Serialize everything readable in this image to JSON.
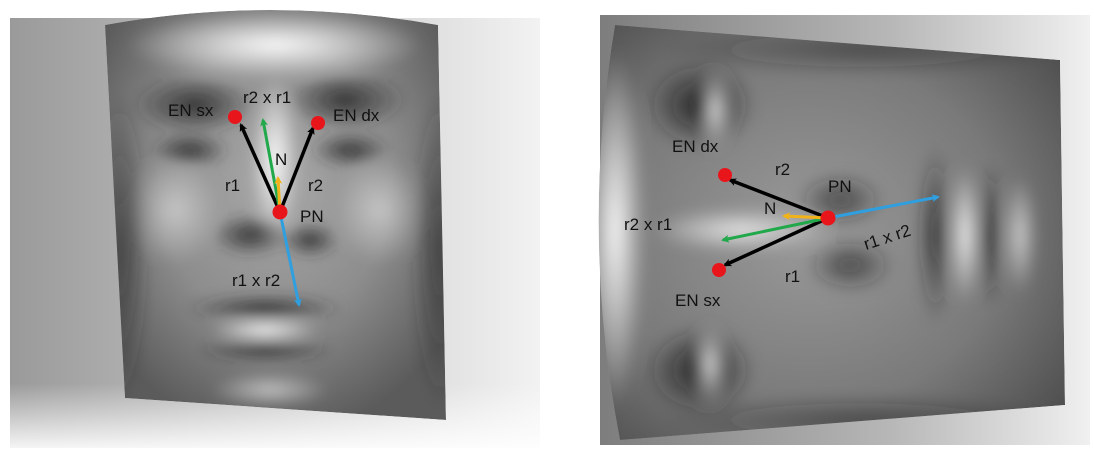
{
  "left_panel": {
    "labels": {
      "en_sx": "EN sx",
      "en_dx": "EN dx",
      "cross_top": "r2 x r1",
      "n": "N",
      "r1": "r1",
      "r2": "r2",
      "pn": "PN",
      "cross_bottom": "r1 x r2"
    }
  },
  "right_panel": {
    "labels": {
      "en_dx": "EN dx",
      "r2": "r2",
      "pn": "PN",
      "n": "N",
      "cross_left": "r2 x r1",
      "cross_right": "r1 x r2",
      "r1": "r1",
      "en_sx": "EN sx"
    }
  },
  "colors": {
    "landmark": "#e8151b",
    "vector_r": "#000000",
    "normal_n": "#f2b318",
    "cross_r2xr1": "#21a84a",
    "cross_r1xr2": "#2f9fe0"
  },
  "icons": [
    "face-mesh-front",
    "face-mesh-bottom"
  ]
}
